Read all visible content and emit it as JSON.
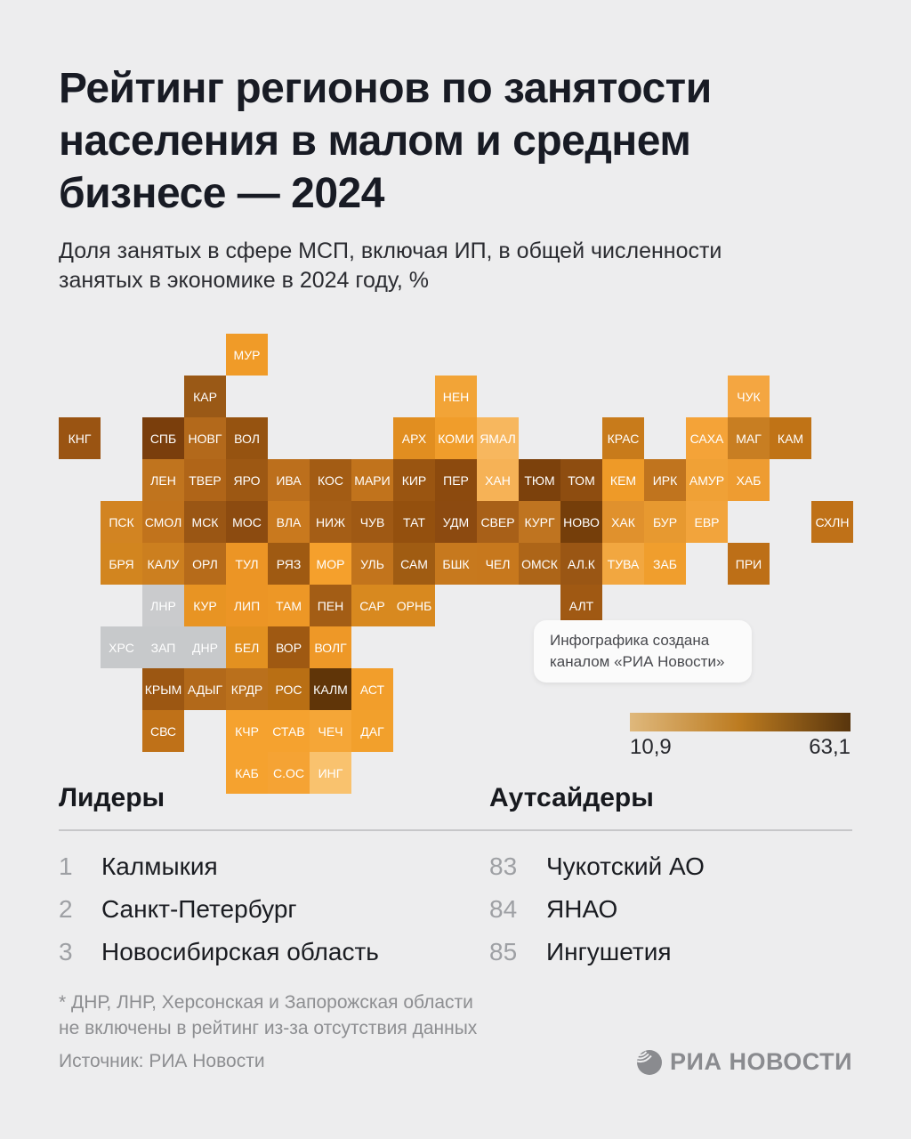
{
  "header": {
    "title_lines": [
      "Рейтинг регионов по занятости",
      "населения в малом и среднем",
      "бизнесе — 2024"
    ],
    "subtitle_lines": [
      "Доля занятых в сфере МСП, включая ИП, в общей численности",
      "занятых в экономике в 2024 году, %"
    ]
  },
  "note_card": {
    "text": "Инфографика создана каналом «РИА Новости»"
  },
  "chart_data": {
    "type": "heatmap",
    "title": "Рейтинг регионов по занятости населения в малом и среднем бизнесе — 2024",
    "subtitle": "Доля занятых в сфере МСП, включая ИП, в общей численности занятых в экономике в 2024 году, %",
    "unit": "%",
    "legend": {
      "min_label": "10,9",
      "max_label": "63,1",
      "gradient": [
        "#DFB87C",
        "#BC7B20",
        "#58350D"
      ],
      "excluded_color": "#C7C9CB"
    },
    "tile_size_px": 47,
    "tiles": [
      {
        "code": "МУР",
        "col": 4,
        "row": 0,
        "color": "#F09B28"
      },
      {
        "code": "КАР",
        "col": 3,
        "row": 1,
        "color": "#9A5916"
      },
      {
        "code": "НЕН",
        "col": 9,
        "row": 1,
        "color": "#F2A437"
      },
      {
        "code": "ЧУК",
        "col": 16,
        "row": 1,
        "color": "#F4A641"
      },
      {
        "code": "КНГ",
        "col": 0,
        "row": 2,
        "color": "#9A5412"
      },
      {
        "code": "СПБ",
        "col": 2,
        "row": 2,
        "color": "#7A3E0C"
      },
      {
        "code": "НОВГ",
        "col": 3,
        "row": 2,
        "color": "#B3691B"
      },
      {
        "code": "ВОЛ",
        "col": 4,
        "row": 2,
        "color": "#965310"
      },
      {
        "code": "АРХ",
        "col": 8,
        "row": 2,
        "color": "#E18E20"
      },
      {
        "code": "КОМИ",
        "col": 9,
        "row": 2,
        "color": "#F09D2B"
      },
      {
        "code": "ЯМАЛ",
        "col": 10,
        "row": 2,
        "color": "#F7B75E"
      },
      {
        "code": "КРАС",
        "col": 13,
        "row": 2,
        "color": "#C87B1B"
      },
      {
        "code": "САХА",
        "col": 15,
        "row": 2,
        "color": "#F4A338"
      },
      {
        "code": "МАГ",
        "col": 16,
        "row": 2,
        "color": "#C87E22"
      },
      {
        "code": "КАМ",
        "col": 17,
        "row": 2,
        "color": "#C07316"
      },
      {
        "code": "ЛЕН",
        "col": 2,
        "row": 3,
        "color": "#C0741E"
      },
      {
        "code": "ТВЕР",
        "col": 3,
        "row": 3,
        "color": "#B06518"
      },
      {
        "code": "ЯРО",
        "col": 4,
        "row": 3,
        "color": "#9D5813"
      },
      {
        "code": "ИВА",
        "col": 5,
        "row": 3,
        "color": "#BC6F1C"
      },
      {
        "code": "КОС",
        "col": 6,
        "row": 3,
        "color": "#A35C14"
      },
      {
        "code": "МАРИ",
        "col": 7,
        "row": 3,
        "color": "#C1731C"
      },
      {
        "code": "КИР",
        "col": 8,
        "row": 3,
        "color": "#9A5511"
      },
      {
        "code": "ПЕР",
        "col": 9,
        "row": 3,
        "color": "#8C4A0E"
      },
      {
        "code": "ХАН",
        "col": 10,
        "row": 3,
        "color": "#F6B256"
      },
      {
        "code": "ТЮМ",
        "col": 11,
        "row": 3,
        "color": "#7C410C"
      },
      {
        "code": "ТОМ",
        "col": 12,
        "row": 3,
        "color": "#8E4D10"
      },
      {
        "code": "КЕМ",
        "col": 13,
        "row": 3,
        "color": "#EE9A28"
      },
      {
        "code": "ИРК",
        "col": 14,
        "row": 3,
        "color": "#C0741E"
      },
      {
        "code": "АМУР",
        "col": 15,
        "row": 3,
        "color": "#F0A136"
      },
      {
        "code": "ХАБ",
        "col": 16,
        "row": 3,
        "color": "#EE9C31"
      },
      {
        "code": "ПСК",
        "col": 1,
        "row": 4,
        "color": "#D28422"
      },
      {
        "code": "СМОЛ",
        "col": 2,
        "row": 4,
        "color": "#C1731C"
      },
      {
        "code": "МСК",
        "col": 3,
        "row": 4,
        "color": "#9A5614"
      },
      {
        "code": "МОС",
        "col": 4,
        "row": 4,
        "color": "#8C4B10"
      },
      {
        "code": "ВЛА",
        "col": 5,
        "row": 4,
        "color": "#C9791E"
      },
      {
        "code": "НИЖ",
        "col": 6,
        "row": 4,
        "color": "#A55E16"
      },
      {
        "code": "ЧУВ",
        "col": 7,
        "row": 4,
        "color": "#9F5914"
      },
      {
        "code": "ТАТ",
        "col": 8,
        "row": 4,
        "color": "#94500E"
      },
      {
        "code": "УДМ",
        "col": 9,
        "row": 4,
        "color": "#8C4A10"
      },
      {
        "code": "СВЕР",
        "col": 10,
        "row": 4,
        "color": "#A86018"
      },
      {
        "code": "КУРГ",
        "col": 11,
        "row": 4,
        "color": "#BF7420"
      },
      {
        "code": "НОВО",
        "col": 12,
        "row": 4,
        "color": "#753E0A"
      },
      {
        "code": "ХАК",
        "col": 13,
        "row": 4,
        "color": "#E0912D"
      },
      {
        "code": "БУР",
        "col": 14,
        "row": 4,
        "color": "#E79930"
      },
      {
        "code": "ЕВР",
        "col": 15,
        "row": 4,
        "color": "#F2A43C"
      },
      {
        "code": "СХЛН",
        "col": 18,
        "row": 4,
        "color": "#BF7118"
      },
      {
        "code": "БРЯ",
        "col": 1,
        "row": 5,
        "color": "#D2851F"
      },
      {
        "code": "КАЛУ",
        "col": 2,
        "row": 5,
        "color": "#CC7F1F"
      },
      {
        "code": "ОРЛ",
        "col": 3,
        "row": 5,
        "color": "#B66B1A"
      },
      {
        "code": "ТУЛ",
        "col": 4,
        "row": 5,
        "color": "#EC9525"
      },
      {
        "code": "РЯЗ",
        "col": 5,
        "row": 5,
        "color": "#9F5A12"
      },
      {
        "code": "МОР",
        "col": 6,
        "row": 5,
        "color": "#F5A02C"
      },
      {
        "code": "УЛЬ",
        "col": 7,
        "row": 5,
        "color": "#C2741C"
      },
      {
        "code": "САМ",
        "col": 8,
        "row": 5,
        "color": "#A05C12"
      },
      {
        "code": "БШК",
        "col": 9,
        "row": 5,
        "color": "#C7791E"
      },
      {
        "code": "ЧЕЛ",
        "col": 10,
        "row": 5,
        "color": "#C7781D"
      },
      {
        "code": "ОМСК",
        "col": 11,
        "row": 5,
        "color": "#AD6518"
      },
      {
        "code": "АЛ.К",
        "col": 12,
        "row": 5,
        "color": "#9A5614"
      },
      {
        "code": "ТУВА",
        "col": 13,
        "row": 5,
        "color": "#F2A740"
      },
      {
        "code": "ЗАБ",
        "col": 14,
        "row": 5,
        "color": "#F09E2D"
      },
      {
        "code": "ПРИ",
        "col": 16,
        "row": 5,
        "color": "#BD6F17"
      },
      {
        "code": "ЛНР",
        "col": 2,
        "row": 6,
        "color": "#CACBCD"
      },
      {
        "code": "КУР",
        "col": 3,
        "row": 6,
        "color": "#E89423"
      },
      {
        "code": "ЛИП",
        "col": 4,
        "row": 6,
        "color": "#EC9525"
      },
      {
        "code": "ТАМ",
        "col": 5,
        "row": 6,
        "color": "#ED9726"
      },
      {
        "code": "ПЕН",
        "col": 6,
        "row": 6,
        "color": "#A35D15"
      },
      {
        "code": "САР",
        "col": 7,
        "row": 6,
        "color": "#D8891F"
      },
      {
        "code": "ОРНБ",
        "col": 8,
        "row": 6,
        "color": "#D8891F"
      },
      {
        "code": "АЛТ",
        "col": 12,
        "row": 6,
        "color": "#A05913"
      },
      {
        "code": "ХРС",
        "col": 1,
        "row": 7,
        "color": "#C7C9CB"
      },
      {
        "code": "ЗАП",
        "col": 2,
        "row": 7,
        "color": "#C7C9CB"
      },
      {
        "code": "ДНР",
        "col": 3,
        "row": 7,
        "color": "#C7C9CB"
      },
      {
        "code": "БЕЛ",
        "col": 4,
        "row": 7,
        "color": "#E39120"
      },
      {
        "code": "ВОР",
        "col": 5,
        "row": 7,
        "color": "#9F5912"
      },
      {
        "code": "ВОЛГ",
        "col": 6,
        "row": 7,
        "color": "#EE9827"
      },
      {
        "code": "КРЫМ",
        "col": 2,
        "row": 8,
        "color": "#9C5712"
      },
      {
        "code": "АДЫГ",
        "col": 3,
        "row": 8,
        "color": "#B2691A"
      },
      {
        "code": "КРДР",
        "col": 4,
        "row": 8,
        "color": "#BA701C"
      },
      {
        "code": "РОС",
        "col": 5,
        "row": 8,
        "color": "#B96F14"
      },
      {
        "code": "КАЛМ",
        "col": 6,
        "row": 8,
        "color": "#603508"
      },
      {
        "code": "АСТ",
        "col": 7,
        "row": 8,
        "color": "#F29E2B"
      },
      {
        "code": "СВС",
        "col": 2,
        "row": 9,
        "color": "#BF7118"
      },
      {
        "code": "КЧР",
        "col": 4,
        "row": 9,
        "color": "#F5A22F"
      },
      {
        "code": "СТАВ",
        "col": 5,
        "row": 9,
        "color": "#F5A22F"
      },
      {
        "code": "ЧЕЧ",
        "col": 6,
        "row": 9,
        "color": "#F5A637"
      },
      {
        "code": "ДАГ",
        "col": 7,
        "row": 9,
        "color": "#F2A02C"
      },
      {
        "code": "КАБ",
        "col": 4,
        "row": 10,
        "color": "#F5A22F"
      },
      {
        "code": "С.ОС",
        "col": 5,
        "row": 10,
        "color": "#F5A334"
      },
      {
        "code": "ИНГ",
        "col": 6,
        "row": 10,
        "color": "#F9C26E"
      }
    ]
  },
  "leaders": {
    "heading": "Лидеры",
    "items": [
      {
        "rank": "1",
        "name": "Калмыкия"
      },
      {
        "rank": "2",
        "name": "Санкт-Петербург"
      },
      {
        "rank": "3",
        "name": "Новосибирская область"
      }
    ]
  },
  "outsiders": {
    "heading": "Аутсайдеры",
    "items": [
      {
        "rank": "83",
        "name": "Чукотский АО"
      },
      {
        "rank": "84",
        "name": "ЯНАО"
      },
      {
        "rank": "85",
        "name": "Ингушетия"
      }
    ]
  },
  "footer": {
    "footnote_lines": [
      "* ДНР, ЛНР, Херсонская и Запорожская области",
      "не включены в рейтинг из-за отсутствия данных"
    ],
    "source": "Источник: РИА Новости",
    "logo_text": "РИА НОВОСТИ",
    "logo_icon": "globe-icon"
  }
}
